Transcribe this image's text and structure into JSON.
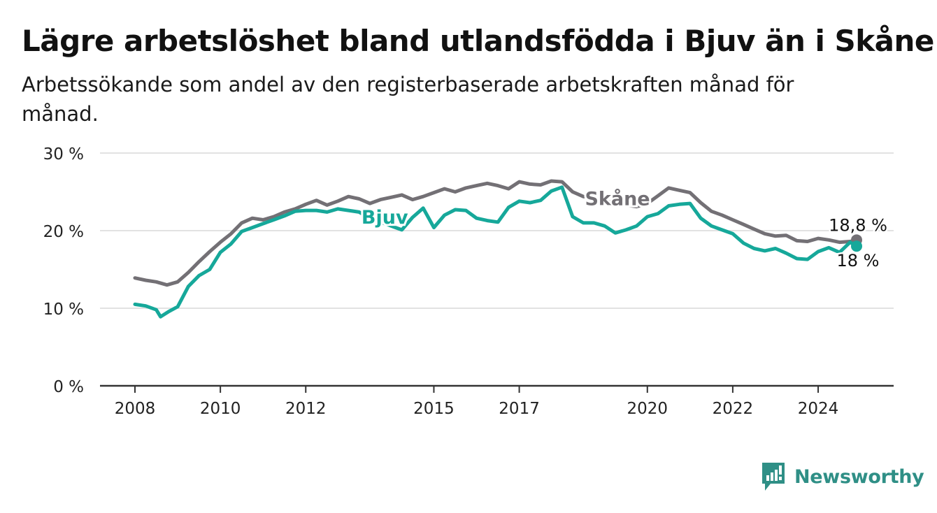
{
  "title": "Lägre arbetslöshet bland utlandsfödda i Bjuv än i Skåne",
  "subtitle": "Arbetssökande som andel av den registerbaserade arbetskraften månad för månad.",
  "brand": {
    "name": "Newsworthy",
    "icon": "newsworthy-logo-icon"
  },
  "colors": {
    "skane": "#737075",
    "bjuv": "#16a89a",
    "grid": "#d9d9d9",
    "axis": "#333333",
    "brand": "#2f8f86"
  },
  "chart_data": {
    "type": "line",
    "title": "Lägre arbetslöshet bland utlandsfödda i Bjuv än i Skåne",
    "subtitle": "Arbetssökande som andel av den registerbaserade arbetskraften månad för månad.",
    "xlabel": "",
    "ylabel": "",
    "xlim": [
      2008.0,
      2025.8
    ],
    "ylim": [
      0,
      30
    ],
    "y_ticks": [
      0,
      10,
      20,
      30
    ],
    "y_tick_labels": [
      "0 %",
      "10 %",
      "20 %",
      "30 %"
    ],
    "x_ticks": [
      2008,
      2010,
      2012,
      2015,
      2017,
      2020,
      2022,
      2024
    ],
    "x_tick_labels": [
      "2008",
      "2010",
      "2012",
      "2015",
      "2017",
      "2020",
      "2022",
      "2024"
    ],
    "grid": true,
    "legend": "inline labels",
    "end_labels": [
      {
        "series": "Skåne",
        "value": 18.8,
        "label": "18,8 %"
      },
      {
        "series": "Bjuv",
        "value": 18,
        "label": "18 %"
      }
    ],
    "series": [
      {
        "name": "Skåne",
        "color": "#737075",
        "points": [
          [
            2008.0,
            13.9
          ],
          [
            2008.25,
            13.6
          ],
          [
            2008.5,
            13.4
          ],
          [
            2008.75,
            13.0
          ],
          [
            2009.0,
            13.4
          ],
          [
            2009.25,
            14.6
          ],
          [
            2009.5,
            16.0
          ],
          [
            2009.75,
            17.3
          ],
          [
            2010.0,
            18.5
          ],
          [
            2010.25,
            19.6
          ],
          [
            2010.5,
            21.0
          ],
          [
            2010.75,
            21.6
          ],
          [
            2011.0,
            21.4
          ],
          [
            2011.25,
            21.8
          ],
          [
            2011.5,
            22.4
          ],
          [
            2011.75,
            22.8
          ],
          [
            2012.0,
            23.4
          ],
          [
            2012.25,
            23.9
          ],
          [
            2012.5,
            23.3
          ],
          [
            2012.75,
            23.8
          ],
          [
            2013.0,
            24.4
          ],
          [
            2013.25,
            24.1
          ],
          [
            2013.5,
            23.5
          ],
          [
            2013.75,
            24.0
          ],
          [
            2014.0,
            24.3
          ],
          [
            2014.25,
            24.6
          ],
          [
            2014.5,
            24.0
          ],
          [
            2014.75,
            24.4
          ],
          [
            2015.0,
            24.9
          ],
          [
            2015.25,
            25.4
          ],
          [
            2015.5,
            25.0
          ],
          [
            2015.75,
            25.5
          ],
          [
            2016.0,
            25.8
          ],
          [
            2016.25,
            26.1
          ],
          [
            2016.5,
            25.8
          ],
          [
            2016.75,
            25.4
          ],
          [
            2017.0,
            26.3
          ],
          [
            2017.25,
            26.0
          ],
          [
            2017.5,
            25.9
          ],
          [
            2017.75,
            26.4
          ],
          [
            2018.0,
            26.3
          ],
          [
            2018.25,
            25.0
          ],
          [
            2018.5,
            24.4
          ],
          [
            2018.75,
            24.1
          ],
          [
            2019.0,
            23.8
          ],
          [
            2019.25,
            23.6
          ],
          [
            2019.5,
            23.3
          ],
          [
            2019.75,
            23.1
          ],
          [
            2020.0,
            23.5
          ],
          [
            2020.25,
            24.5
          ],
          [
            2020.5,
            25.5
          ],
          [
            2020.75,
            25.2
          ],
          [
            2021.0,
            24.9
          ],
          [
            2021.25,
            23.6
          ],
          [
            2021.5,
            22.5
          ],
          [
            2021.75,
            22.0
          ],
          [
            2022.0,
            21.4
          ],
          [
            2022.25,
            20.8
          ],
          [
            2022.5,
            20.2
          ],
          [
            2022.75,
            19.6
          ],
          [
            2023.0,
            19.3
          ],
          [
            2023.25,
            19.4
          ],
          [
            2023.5,
            18.7
          ],
          [
            2023.75,
            18.6
          ],
          [
            2024.0,
            19.0
          ],
          [
            2024.25,
            18.8
          ],
          [
            2024.5,
            18.5
          ],
          [
            2024.75,
            18.6
          ],
          [
            2024.9,
            18.8
          ]
        ]
      },
      {
        "name": "Bjuv",
        "color": "#16a89a",
        "points": [
          [
            2008.0,
            10.5
          ],
          [
            2008.25,
            10.3
          ],
          [
            2008.5,
            9.8
          ],
          [
            2008.6,
            8.9
          ],
          [
            2008.8,
            9.6
          ],
          [
            2009.0,
            10.2
          ],
          [
            2009.25,
            12.8
          ],
          [
            2009.5,
            14.2
          ],
          [
            2009.75,
            15.0
          ],
          [
            2010.0,
            17.2
          ],
          [
            2010.25,
            18.3
          ],
          [
            2010.5,
            19.9
          ],
          [
            2010.75,
            20.4
          ],
          [
            2011.0,
            20.9
          ],
          [
            2011.25,
            21.4
          ],
          [
            2011.5,
            21.9
          ],
          [
            2011.75,
            22.5
          ],
          [
            2012.0,
            22.6
          ],
          [
            2012.25,
            22.6
          ],
          [
            2012.5,
            22.4
          ],
          [
            2012.75,
            22.8
          ],
          [
            2013.0,
            22.6
          ],
          [
            2013.25,
            22.4
          ],
          [
            2013.5,
            21.6
          ],
          [
            2014.25,
            20.1
          ],
          [
            2014.5,
            21.7
          ],
          [
            2014.75,
            22.9
          ],
          [
            2015.0,
            20.4
          ],
          [
            2015.25,
            22.0
          ],
          [
            2015.5,
            22.7
          ],
          [
            2015.75,
            22.6
          ],
          [
            2016.0,
            21.6
          ],
          [
            2016.25,
            21.3
          ],
          [
            2016.5,
            21.1
          ],
          [
            2016.75,
            23.0
          ],
          [
            2017.0,
            23.8
          ],
          [
            2017.25,
            23.6
          ],
          [
            2017.5,
            23.9
          ],
          [
            2017.75,
            25.1
          ],
          [
            2018.0,
            25.6
          ],
          [
            2018.25,
            21.8
          ],
          [
            2018.5,
            21.0
          ],
          [
            2018.75,
            21.0
          ],
          [
            2019.0,
            20.6
          ],
          [
            2019.25,
            19.7
          ],
          [
            2019.5,
            20.1
          ],
          [
            2019.75,
            20.6
          ],
          [
            2020.0,
            21.8
          ],
          [
            2020.25,
            22.2
          ],
          [
            2020.5,
            23.2
          ],
          [
            2020.75,
            23.4
          ],
          [
            2021.0,
            23.5
          ],
          [
            2021.25,
            21.6
          ],
          [
            2021.5,
            20.6
          ],
          [
            2021.75,
            20.1
          ],
          [
            2022.0,
            19.6
          ],
          [
            2022.25,
            18.4
          ],
          [
            2022.5,
            17.7
          ],
          [
            2022.75,
            17.4
          ],
          [
            2023.0,
            17.7
          ],
          [
            2023.25,
            17.1
          ],
          [
            2023.5,
            16.4
          ],
          [
            2023.75,
            16.3
          ],
          [
            2024.0,
            17.3
          ],
          [
            2024.25,
            17.8
          ],
          [
            2024.5,
            17.2
          ],
          [
            2024.75,
            18.5
          ],
          [
            2024.9,
            18.0
          ]
        ]
      }
    ],
    "annotations": [
      {
        "text": "Skåne",
        "series": "Skåne",
        "x": 2019.3,
        "y": 23.3
      },
      {
        "text": "Bjuv",
        "series": "Bjuv",
        "x": 2013.85,
        "y": 20.9
      }
    ]
  }
}
